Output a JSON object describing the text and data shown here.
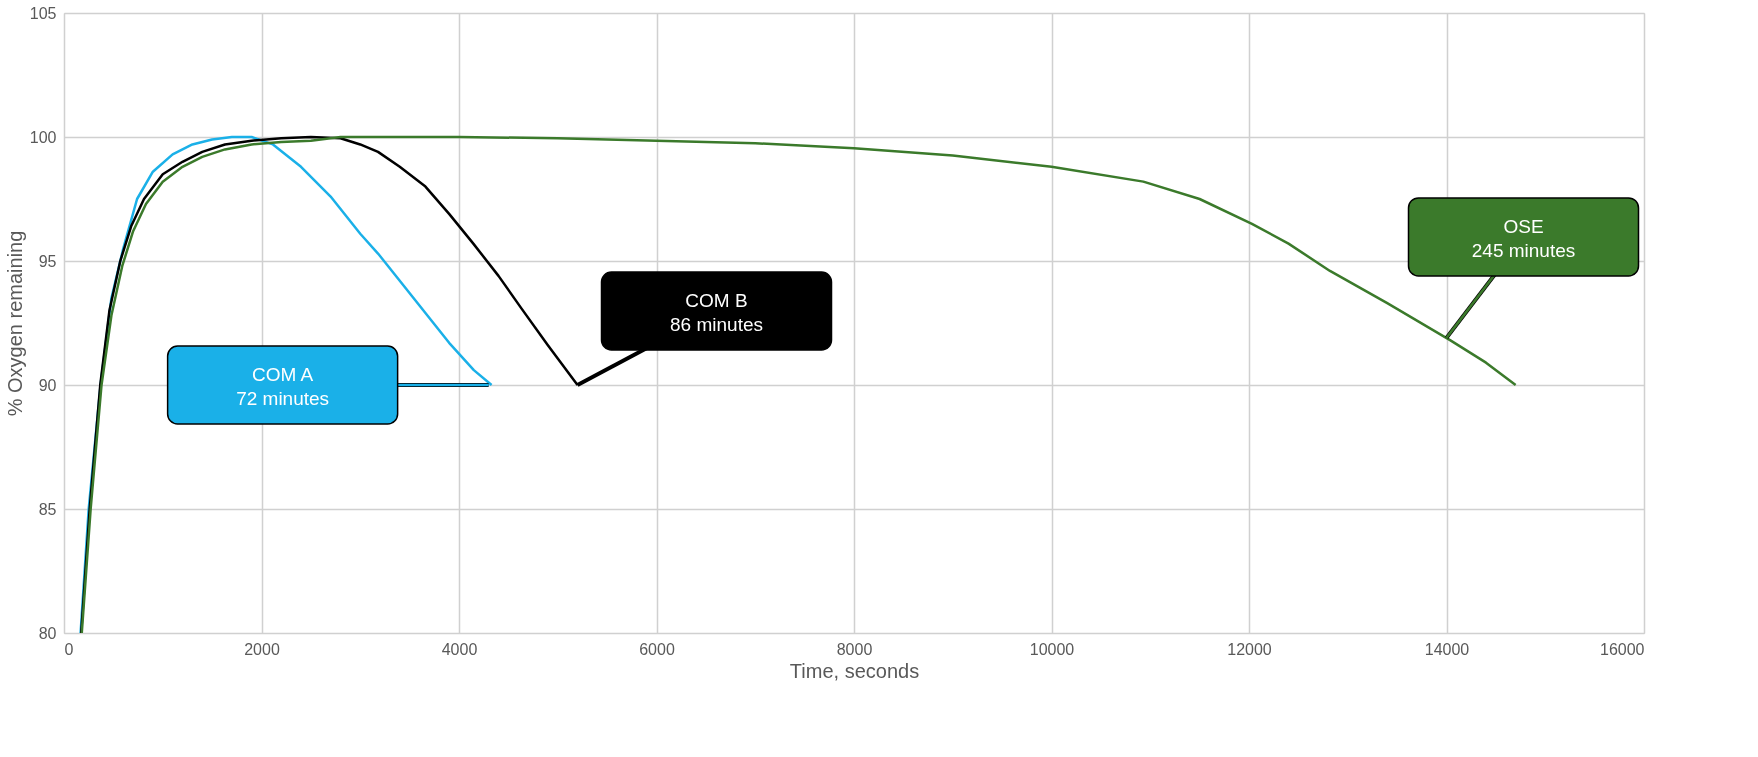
{
  "chart_data": {
    "type": "line",
    "xlabel": "Time, seconds",
    "ylabel": "% Oxygen remaining",
    "xlim": [
      0,
      16000
    ],
    "xticks": [
      0,
      2000,
      4000,
      6000,
      8000,
      10000,
      12000,
      14000,
      16000
    ],
    "ylim": [
      80,
      105
    ],
    "yticks": [
      80,
      85,
      90,
      95,
      100,
      105
    ],
    "grid": true,
    "legend": false,
    "line_style": "solid",
    "marker": "none",
    "series": [
      {
        "color": "#1ab0e8",
        "x": [
          168,
          250,
          370,
          480,
          600,
          740,
          900,
          1100,
          1300,
          1500,
          1700,
          1900,
          2116,
          2400,
          2700,
          3000,
          3180,
          3400,
          3660,
          3900,
          4150,
          4330
        ],
        "values": [
          80,
          85,
          90,
          93.5,
          95.5,
          97.5,
          98.6,
          99.3,
          99.7,
          99.9,
          100,
          100,
          99.7,
          98.8,
          97.6,
          96.1,
          95.3,
          94.2,
          92.9,
          91.7,
          90.6,
          90
        ]
      },
      {
        "color": "#000000",
        "x": [
          174,
          260,
          367,
          460,
          570,
          680,
          810,
          1000,
          1200,
          1400,
          1630,
          1900,
          2200,
          2500,
          2800,
          3000,
          3180,
          3400,
          3660,
          3900,
          4145,
          4400,
          4630,
          4900,
          5200
        ],
        "values": [
          80,
          85,
          90,
          93,
          95,
          96.4,
          97.5,
          98.5,
          99,
          99.4,
          99.7,
          99.85,
          99.95,
          100,
          99.95,
          99.7,
          99.4,
          98.8,
          98,
          96.9,
          95.7,
          94.4,
          93.1,
          91.6,
          90
        ]
      },
      {
        "color": "#3b7a2b",
        "x": [
          180,
          270,
          380,
          480,
          590,
          700,
          830,
          1000,
          1200,
          1400,
          1630,
          1900,
          2200,
          2500,
          2800,
          4000,
          5000,
          6000,
          7000,
          8000,
          9000,
          10000,
          10930,
          11500,
          12030,
          12400,
          12820,
          13400,
          14040,
          14400,
          14700
        ],
        "values": [
          80,
          85,
          90,
          92.8,
          94.8,
          96.2,
          97.3,
          98.2,
          98.8,
          99.2,
          99.5,
          99.7,
          99.8,
          99.85,
          100,
          100,
          99.95,
          99.85,
          99.75,
          99.55,
          99.25,
          98.8,
          98.2,
          97.5,
          96.5,
          95.7,
          94.6,
          93.3,
          91.8,
          90.9,
          90
        ]
      }
    ],
    "annotations": [
      {
        "text": "COM A\n72 minutes",
        "x": 4300,
        "y": 90
      },
      {
        "text": "COM B\n86 minutes",
        "x": 5200,
        "y": 90
      },
      {
        "text": "OSE\n245 minutes",
        "x": 14000,
        "y": 91.9
      }
    ]
  }
}
